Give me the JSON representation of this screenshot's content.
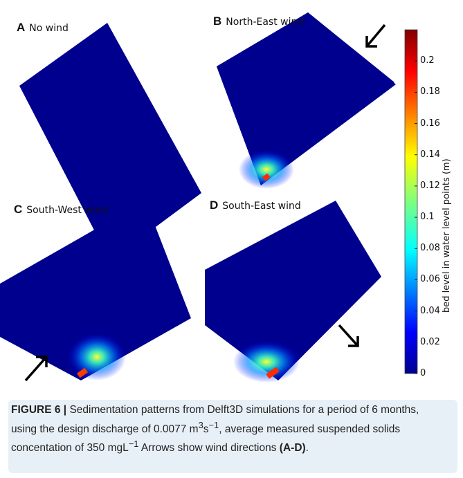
{
  "panels": [
    {
      "letter": "A",
      "title": "No wind",
      "arrow": "none"
    },
    {
      "letter": "B",
      "title": "North-East wind",
      "arrow": "north-east"
    },
    {
      "letter": "C",
      "title": "South-West wind",
      "arrow": "south-west"
    },
    {
      "letter": "D",
      "title": "South-East wind",
      "arrow": "south-east"
    }
  ],
  "colorbar": {
    "label": "bed level in water level points (m)",
    "ticks": [
      "0.2",
      "0.18",
      "0.16",
      "0.14",
      "0.12",
      "0.1",
      "0.08",
      "0.06",
      "0.04",
      "0.02",
      "0"
    ],
    "range": [
      0,
      0.22
    ],
    "colormap": "jet"
  },
  "colors": {
    "basin": "#00008f",
    "caption_bg": "#e8f0f7"
  },
  "caption": {
    "figure_number": "FIGURE 6 |",
    "text_1": " Sedimentation patterns from Delft3D simulations for a period of 6 months, using the design discharge of 0.0077 m",
    "sup_1": "3",
    "text_2": "s",
    "sup_2": "−1",
    "text_3": ", average measured suspended solids concentation of 350 mgL",
    "sup_3": "−1",
    "text_4": " Arrows show wind directions ",
    "panel_ref": "(A-D)",
    "text_5": "."
  }
}
